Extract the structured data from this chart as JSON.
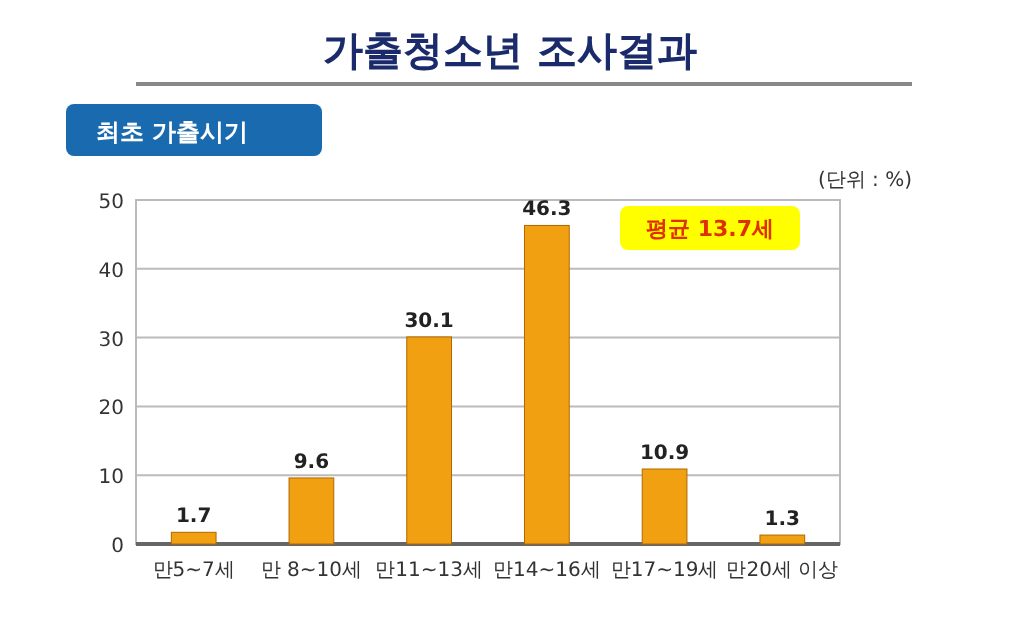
{
  "chart_data": {
    "type": "bar",
    "title": "가출청소년 조사결과",
    "subtitle": "최초 가출시기",
    "categories": [
      "만5~7세",
      "만 8~10세",
      "만11~13세",
      "만14~16세",
      "만17~19세",
      "만20세 이상"
    ],
    "values": [
      1.7,
      9.6,
      30.1,
      46.3,
      10.9,
      1.3
    ],
    "color": "#f0a010",
    "ylim": [
      0,
      50
    ],
    "yticks": [
      0,
      10,
      20,
      30,
      40,
      50
    ],
    "grid": "y",
    "data_labels": true,
    "annotations": [
      "(단위 : %)",
      "평균 13.7세"
    ]
  }
}
